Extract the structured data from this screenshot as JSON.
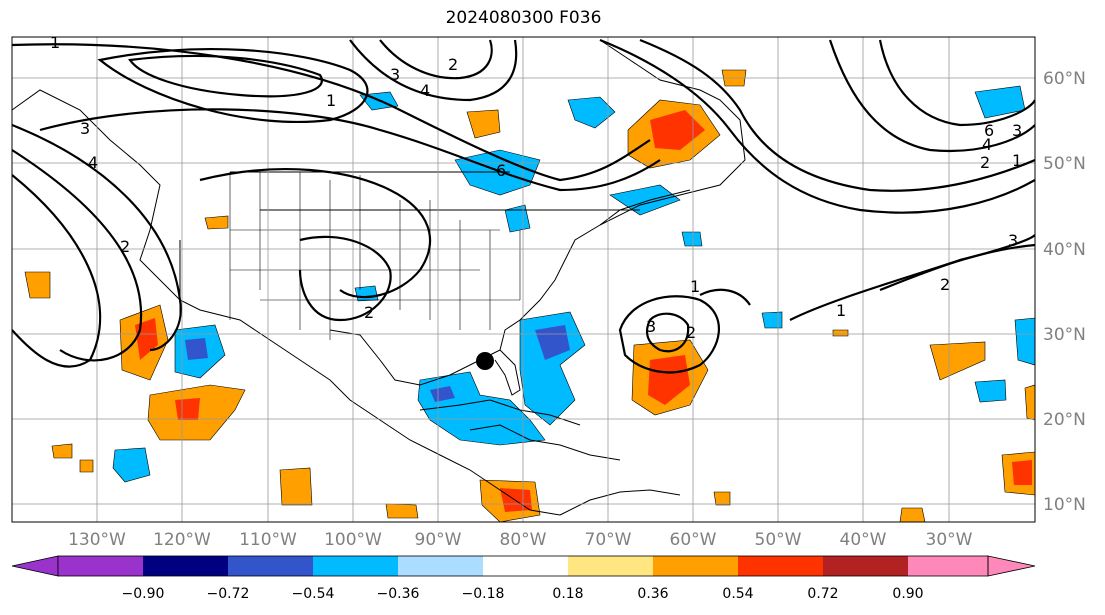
{
  "title": "2024080300 F036",
  "lon_ticks": [
    "130°W",
    "120°W",
    "110°W",
    "100°W",
    "90°W",
    "80°W",
    "70°W",
    "60°W",
    "50°W",
    "40°W",
    "30°W"
  ],
  "lat_ticks": [
    "60°N",
    "50°N",
    "40°N",
    "30°N",
    "20°N",
    "10°N"
  ],
  "colorbar": {
    "ticks": [
      "−0.90",
      "−0.72",
      "−0.54",
      "−0.36",
      "−0.18",
      "0.18",
      "0.36",
      "0.54",
      "0.72",
      "0.90"
    ],
    "colors": [
      "#9933cc",
      "#000080",
      "#3355cc",
      "#00bbff",
      "#aaddff",
      "#ffffff",
      "#ffe680",
      "#ffa000",
      "#ff3300",
      "#b22222",
      "#ff88bb"
    ]
  },
  "contour_labels": [
    "1",
    "2",
    "3",
    "4",
    "6",
    "1",
    "2",
    "3",
    "4",
    "2",
    "1",
    "1",
    "2",
    "3",
    "2",
    "1",
    "3",
    "2",
    "3",
    "4",
    "6"
  ],
  "storm_marker": "black-dot"
}
